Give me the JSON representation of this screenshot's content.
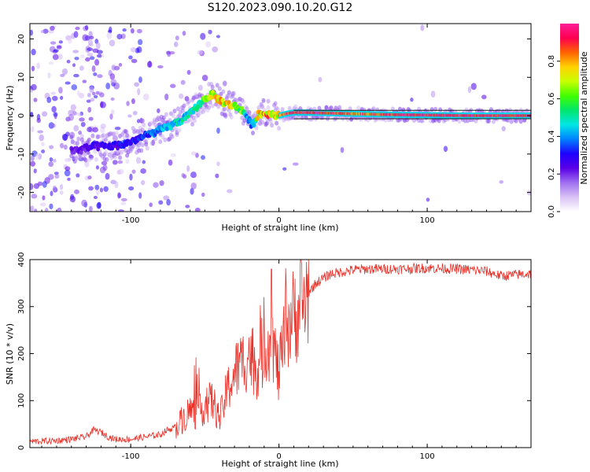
{
  "title": "S120.2023.090.10.20.G12",
  "colors": {
    "snr_line": "#e8332b",
    "colormap": [
      "#ffffff",
      "#d9c2f5",
      "#a070f0",
      "#5a00e6",
      "#1e00ff",
      "#0080ff",
      "#00e6e6",
      "#00e66e",
      "#40ff00",
      "#c8ff00",
      "#ffd200",
      "#ff6400",
      "#ff0050",
      "#ff1e96"
    ]
  },
  "chart_data": [
    {
      "type": "heatmap",
      "title": "S120.2023.090.10.20.G12",
      "xlabel": "Height of straight line (km)",
      "ylabel": "Frequency (Hz)",
      "xlim": [
        -168,
        170
      ],
      "ylim": [
        -25,
        24
      ],
      "xticks": [
        -100,
        0,
        100
      ],
      "xtick_labels": [
        "-100",
        "0",
        "100"
      ],
      "yticks": [
        -20,
        -10,
        0,
        10,
        20
      ],
      "ytick_labels": [
        "-20",
        "-10",
        "0",
        "10",
        "20"
      ],
      "grid": false,
      "colorbar": {
        "label": "Normalized spectral amplitude",
        "range": [
          0,
          1
        ],
        "ticks": [
          0.0,
          0.2,
          0.4,
          0.6,
          0.8
        ],
        "tick_labels": [
          "0.0",
          "0.2",
          "0.4",
          "0.6",
          "0.8"
        ]
      },
      "ridge": {
        "x": [
          -135,
          -125,
          -115,
          -105,
          -95,
          -85,
          -75,
          -65,
          -60,
          -55,
          -50,
          -45,
          -40,
          -35,
          -30,
          -25,
          -22,
          -20,
          -18,
          -16,
          -14,
          -10,
          -5,
          0,
          5,
          10,
          20,
          30,
          40,
          50,
          70,
          90,
          110,
          130,
          150,
          170
        ],
        "y": [
          -9,
          -8,
          -8,
          -7.5,
          -6,
          -4.5,
          -3,
          -1,
          0.5,
          2.5,
          4.5,
          5.5,
          4,
          3,
          2.5,
          1.5,
          0,
          -1.5,
          -2.5,
          -1,
          0.5,
          0.5,
          0.5,
          0,
          0.5,
          0.8,
          0.8,
          0.7,
          0.6,
          0.5,
          0.3,
          0.2,
          0.1,
          0,
          0,
          0
        ],
        "amplitude": [
          0.25,
          0.3,
          0.3,
          0.35,
          0.35,
          0.45,
          0.5,
          0.55,
          0.55,
          0.6,
          0.7,
          0.8,
          0.85,
          0.85,
          0.8,
          0.7,
          0.5,
          0.4,
          0.45,
          0.6,
          0.9,
          0.9,
          0.9,
          0.85,
          0.95,
          1,
          1,
          1,
          0.95,
          0.9,
          0.95,
          1,
          1,
          1,
          1,
          1
        ]
      }
    },
    {
      "type": "line",
      "xlabel": "Height of straight line (km)",
      "ylabel": "SNR (10 * v/v)",
      "xlim": [
        -168,
        170
      ],
      "ylim": [
        0,
        400
      ],
      "xticks": [
        -100,
        0,
        100
      ],
      "xtick_labels": [
        "-100",
        "0",
        "100"
      ],
      "yticks": [
        0,
        100,
        200,
        300,
        400
      ],
      "ytick_labels": [
        "0",
        "100",
        "200",
        "300",
        "400"
      ],
      "grid": false,
      "series": [
        {
          "x": [
            -168,
            -150,
            -140,
            -130,
            -125,
            -120,
            -115,
            -110,
            -100,
            -90,
            -80,
            -75,
            -70,
            -65,
            -60,
            -55,
            -50,
            -45,
            -40,
            -35,
            -30,
            -25,
            -20,
            -15,
            -10,
            -5,
            0,
            5,
            10,
            15,
            20,
            25,
            30,
            35,
            40,
            50,
            60,
            80,
            100,
            120,
            130,
            140,
            150,
            160,
            170
          ],
          "y": [
            10,
            12,
            15,
            20,
            35,
            30,
            20,
            15,
            15,
            20,
            25,
            35,
            40,
            60,
            80,
            70,
            90,
            100,
            60,
            120,
            160,
            180,
            200,
            170,
            210,
            240,
            150,
            260,
            280,
            300,
            330,
            350,
            360,
            370,
            372,
            378,
            380,
            380,
            382,
            380,
            378,
            375,
            365,
            368,
            370
          ]
        }
      ]
    }
  ]
}
